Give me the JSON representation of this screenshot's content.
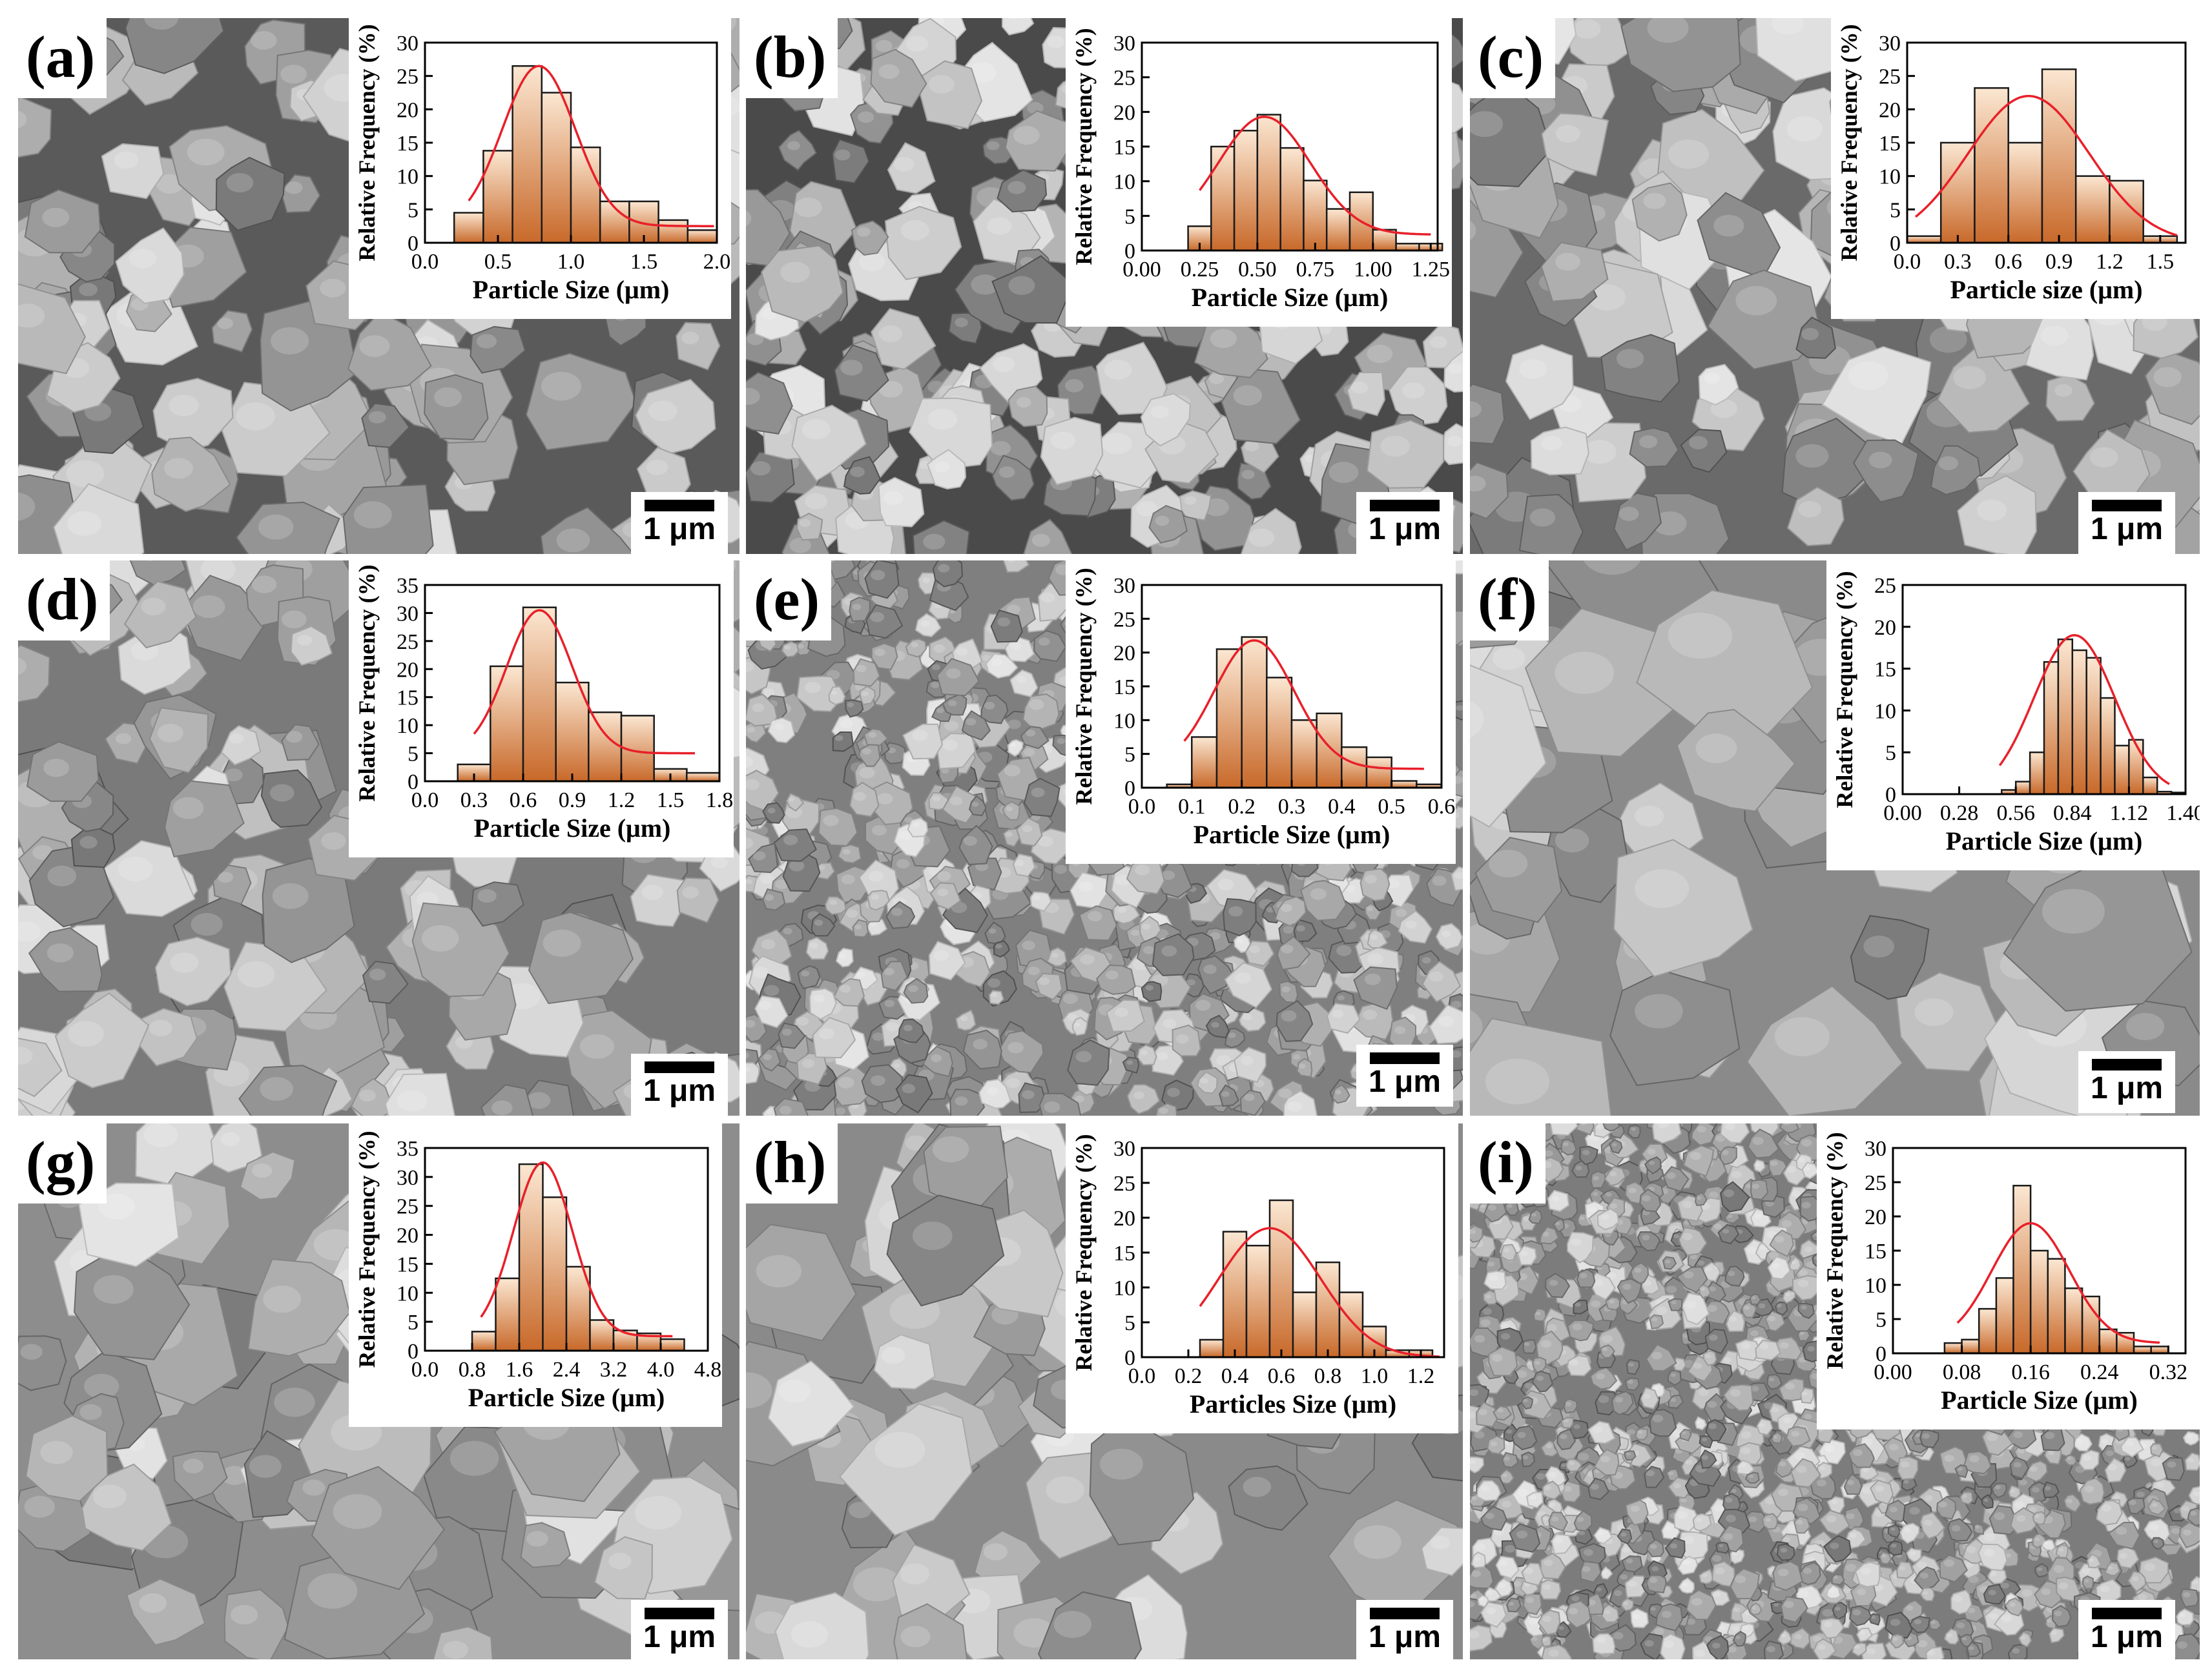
{
  "figure": {
    "bar_gradient_top": "#fbe7d2",
    "bar_gradient_bottom": "#c8692a",
    "fit_color": "#e8202a",
    "scale_bar_label": "1 μm"
  },
  "chart_data": [
    {
      "type": "bar",
      "panel": "(a)",
      "xlabel": "Particle Size (μm)",
      "ylabel": "Relative Frequency (%)",
      "xlim": [
        0,
        2.0
      ],
      "ylim": [
        0,
        30
      ],
      "xticks": [
        "0.0",
        "0.5",
        "1.0",
        "1.5",
        "2.0"
      ],
      "yticks": [
        "0",
        "5",
        "10",
        "15",
        "20",
        "25",
        "30"
      ],
      "bin_width": 0.2,
      "x": [
        0.3,
        0.5,
        0.7,
        0.9,
        1.1,
        1.3,
        1.5,
        1.7,
        1.9
      ],
      "values": [
        4.5,
        13.8,
        26.5,
        22.5,
        14.3,
        6.2,
        6.2,
        3.4,
        1.9
      ],
      "fit": {
        "mu": 0.78,
        "sigma": 0.25,
        "amp": 24,
        "base": 2.5,
        "x0": 0.3,
        "x1": 1.98
      }
    },
    {
      "type": "bar",
      "panel": "(b)",
      "xlabel": "Particle Size (μm)",
      "ylabel": "Relative Frequency (%)",
      "xlim": [
        0,
        1.28
      ],
      "ylim": [
        0,
        30
      ],
      "xticks": [
        "0.00",
        "0.25",
        "0.50",
        "0.75",
        "1.00",
        "1.25"
      ],
      "yticks": [
        "0",
        "5",
        "10",
        "15",
        "20",
        "25",
        "30"
      ],
      "bin_width": 0.1,
      "x": [
        0.25,
        0.35,
        0.45,
        0.55,
        0.65,
        0.75,
        0.85,
        0.95,
        1.05,
        1.15,
        1.25
      ],
      "values": [
        3.5,
        15,
        17.3,
        19.6,
        14.8,
        10.1,
        6,
        8.4,
        3,
        1,
        1
      ],
      "fit": {
        "mu": 0.53,
        "sigma": 0.2,
        "amp": 17,
        "base": 2.3,
        "x0": 0.25,
        "x1": 1.25
      }
    },
    {
      "type": "bar",
      "panel": "(c)",
      "xlabel": "Particle size (μm)",
      "ylabel": "Relative Frequency (%)",
      "xlim": [
        0,
        1.65
      ],
      "ylim": [
        0,
        30
      ],
      "xticks": [
        "0.0",
        "0.3",
        "0.6",
        "0.9",
        "1.2",
        "1.5"
      ],
      "yticks": [
        "0",
        "5",
        "10",
        "15",
        "20",
        "25",
        "30"
      ],
      "bin_width": 0.2,
      "x": [
        0.1,
        0.3,
        0.5,
        0.7,
        0.9,
        1.1,
        1.3,
        1.5
      ],
      "values": [
        1,
        15,
        23.2,
        15,
        26,
        10,
        9.3,
        1
      ],
      "fit": {
        "mu": 0.72,
        "sigma": 0.36,
        "amp": 22,
        "base": 0,
        "x0": 0.05,
        "x1": 1.6
      }
    },
    {
      "type": "bar",
      "panel": "(d)",
      "xlabel": "Particle Size (μm)",
      "ylabel": "Relative Frequency (%)",
      "xlim": [
        0,
        1.8
      ],
      "ylim": [
        0,
        35
      ],
      "xticks": [
        "0.0",
        "0.3",
        "0.6",
        "0.9",
        "1.2",
        "1.5",
        "1.8"
      ],
      "yticks": [
        "0",
        "5",
        "10",
        "15",
        "20",
        "25",
        "30",
        "35"
      ],
      "bin_width": 0.2,
      "x": [
        0.3,
        0.5,
        0.7,
        0.9,
        1.1,
        1.3,
        1.5,
        1.7
      ],
      "values": [
        3,
        20.5,
        31,
        17.6,
        12.3,
        11.7,
        2.2,
        1.5
      ],
      "fit": {
        "mu": 0.7,
        "sigma": 0.2,
        "amp": 25.5,
        "base": 5,
        "x0": 0.3,
        "x1": 1.65
      }
    },
    {
      "type": "bar",
      "panel": "(e)",
      "xlabel": "Particle Size (μm)",
      "ylabel": "Relative Frequency (%)",
      "xlim": [
        0,
        0.6
      ],
      "ylim": [
        0,
        30
      ],
      "xticks": [
        "0.0",
        "0.1",
        "0.2",
        "0.3",
        "0.4",
        "0.5",
        "0.6"
      ],
      "yticks": [
        "0",
        "5",
        "10",
        "15",
        "20",
        "25",
        "30"
      ],
      "bin_width": 0.05,
      "x": [
        0.075,
        0.125,
        0.175,
        0.225,
        0.275,
        0.325,
        0.375,
        0.425,
        0.475,
        0.525,
        0.575
      ],
      "values": [
        0.5,
        7.5,
        20.5,
        22.3,
        16.3,
        10,
        11,
        6,
        4.5,
        1,
        0.5
      ],
      "fit": {
        "mu": 0.225,
        "sigma": 0.08,
        "amp": 19,
        "base": 2.8,
        "x0": 0.085,
        "x1": 0.565
      }
    },
    {
      "type": "bar",
      "panel": "(f)",
      "xlabel": "Particle Size (μm)",
      "ylabel": "Relative Frequency (%)",
      "xlim": [
        0,
        1.4
      ],
      "ylim": [
        0,
        25
      ],
      "xticks": [
        "0.00",
        "0.28",
        "0.56",
        "0.84",
        "1.12",
        "1.40"
      ],
      "yticks": [
        "0",
        "5",
        "10",
        "15",
        "20",
        "25"
      ],
      "bin_width": 0.07,
      "x": [
        0.525,
        0.595,
        0.665,
        0.735,
        0.805,
        0.875,
        0.945,
        1.015,
        1.085,
        1.155,
        1.225,
        1.295,
        1.365
      ],
      "values": [
        0.5,
        1.5,
        5,
        15.8,
        18.5,
        17.2,
        16.3,
        11.5,
        5.8,
        6.5,
        2,
        0.3,
        0.2
      ],
      "fit": {
        "mu": 0.85,
        "sigma": 0.2,
        "amp": 19,
        "base": 0,
        "x0": 0.48,
        "x1": 1.32
      }
    },
    {
      "type": "bar",
      "panel": "(g)",
      "xlabel": "Particle Size (μm)",
      "ylabel": "Relative Frequency (%)",
      "xlim": [
        0,
        4.8
      ],
      "ylim": [
        0,
        35
      ],
      "xticks": [
        "0.0",
        "0.8",
        "1.6",
        "2.4",
        "3.2",
        "4.0",
        "4.8"
      ],
      "yticks": [
        "0",
        "5",
        "10",
        "15",
        "20",
        "25",
        "30",
        "35"
      ],
      "bin_width": 0.4,
      "x": [
        1.0,
        1.4,
        1.8,
        2.2,
        2.6,
        3.0,
        3.4,
        3.8,
        4.2
      ],
      "values": [
        3.3,
        12.5,
        32.2,
        26.5,
        14.5,
        5.3,
        3.5,
        3,
        2
      ],
      "fit": {
        "mu": 2.0,
        "sigma": 0.5,
        "amp": 30,
        "base": 2.5,
        "x0": 0.95,
        "x1": 4.2
      }
    },
    {
      "type": "bar",
      "panel": "(h)",
      "xlabel": "Particles Size (μm)",
      "ylabel": "Relative Frequency (%)",
      "xlim": [
        0,
        1.3
      ],
      "ylim": [
        0,
        30
      ],
      "xticks": [
        "0.0",
        "0.2",
        "0.4",
        "0.6",
        "0.8",
        "1.0",
        "1.2"
      ],
      "yticks": [
        "0",
        "5",
        "10",
        "15",
        "20",
        "25",
        "30"
      ],
      "bin_width": 0.1,
      "x": [
        0.3,
        0.4,
        0.5,
        0.6,
        0.7,
        0.8,
        0.9,
        1.0,
        1.1,
        1.2
      ],
      "values": [
        2.5,
        18,
        16,
        22.5,
        9.3,
        13.6,
        9.3,
        4.4,
        1,
        1
      ],
      "fit": {
        "mu": 0.55,
        "sigma": 0.22,
        "amp": 18.5,
        "base": 0,
        "x0": 0.25,
        "x1": 1.28
      }
    },
    {
      "type": "bar",
      "panel": "(i)",
      "xlabel": "Particle Size (μm)",
      "ylabel": "Relative Frequency (%)",
      "xlim": [
        0,
        0.34
      ],
      "ylim": [
        0,
        30
      ],
      "xticks": [
        "0.00",
        "0.08",
        "0.16",
        "0.24",
        "0.32"
      ],
      "yticks": [
        "0",
        "5",
        "10",
        "15",
        "20",
        "25",
        "30"
      ],
      "bin_width": 0.02,
      "x": [
        0.07,
        0.09,
        0.11,
        0.13,
        0.15,
        0.17,
        0.19,
        0.21,
        0.23,
        0.25,
        0.27,
        0.29,
        0.31
      ],
      "values": [
        1.5,
        2,
        6.5,
        11,
        24.5,
        15,
        13.8,
        9.5,
        8.3,
        3.5,
        3,
        1,
        1
      ],
      "fit": {
        "mu": 0.16,
        "sigma": 0.045,
        "amp": 17.5,
        "base": 1.5,
        "x0": 0.075,
        "x1": 0.31
      }
    }
  ]
}
